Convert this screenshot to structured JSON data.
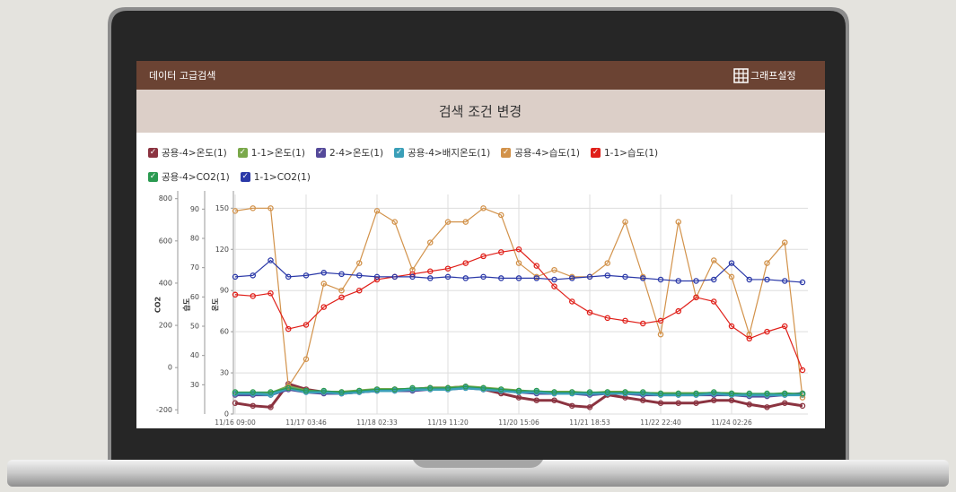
{
  "header": {
    "title": "데이터 고급검색",
    "button": "그래프설정"
  },
  "panel": {
    "title": "검색 조건 변경"
  },
  "chart_data": {
    "type": "line",
    "categories": [
      "11/16 09:00",
      null,
      null,
      null,
      "11/17 03:46",
      null,
      null,
      null,
      "11/18 02:33",
      null,
      null,
      null,
      "11/19 11:20",
      null,
      null,
      null,
      "11/20 15:06",
      null,
      null,
      null,
      "11/21 18:53",
      null,
      null,
      null,
      "11/22 22:40",
      null,
      null,
      null,
      "11/24 02:26",
      null,
      null,
      null,
      null
    ],
    "ylabel": "온도",
    "ylim": [
      0,
      160
    ],
    "yticks": [
      0,
      30,
      60,
      90,
      120,
      150
    ],
    "y2label": "습도",
    "y2lim": [
      20,
      95
    ],
    "y2ticks": [
      30,
      40,
      50,
      60,
      70,
      80,
      90
    ],
    "y3label": "CO2",
    "y3lim": [
      -220,
      820
    ],
    "y3ticks": [
      -200,
      0,
      200,
      400,
      600,
      800
    ],
    "grid": true,
    "series": [
      {
        "name": "공용-4>온도(1)",
        "color": "#8b3340",
        "values": [
          8,
          6,
          5,
          22,
          18,
          16,
          15,
          16,
          17,
          18,
          18,
          19,
          19,
          20,
          18,
          15,
          12,
          10,
          10,
          6,
          5,
          14,
          12,
          10,
          8,
          8,
          8,
          10,
          10,
          7,
          5,
          8,
          6
        ]
      },
      {
        "name": "1-1>온도(1)",
        "color": "#7aa84a",
        "values": [
          15,
          15,
          15,
          20,
          17,
          16,
          16,
          17,
          18,
          18,
          18,
          19,
          19,
          20,
          19,
          18,
          17,
          16,
          16,
          16,
          15,
          16,
          16,
          15,
          15,
          15,
          15,
          15,
          15,
          14,
          14,
          15,
          14
        ]
      },
      {
        "name": "2-4>온도(1)",
        "color": "#554a9a",
        "values": [
          14,
          14,
          14,
          18,
          16,
          15,
          15,
          16,
          17,
          17,
          17,
          18,
          18,
          19,
          18,
          17,
          16,
          15,
          15,
          15,
          14,
          15,
          15,
          14,
          14,
          14,
          14,
          14,
          14,
          13,
          13,
          14,
          15
        ]
      },
      {
        "name": "공용-4>배지온도(1)",
        "color": "#3a9fb8",
        "values": [
          15,
          15,
          14,
          19,
          16,
          16,
          15,
          16,
          17,
          17,
          18,
          18,
          18,
          19,
          18,
          17,
          16,
          16,
          15,
          15,
          15,
          15,
          15,
          15,
          14,
          14,
          14,
          15,
          14,
          14,
          14,
          14,
          14
        ]
      },
      {
        "name": "공용-4>습도(1)",
        "color": "#d2924a",
        "values": [
          148,
          150,
          150,
          20,
          40,
          95,
          90,
          110,
          148,
          140,
          105,
          125,
          140,
          140,
          150,
          145,
          110,
          100,
          105,
          100,
          100,
          110,
          140,
          100,
          58,
          140,
          85,
          112,
          100,
          58,
          110,
          125,
          12
        ]
      },
      {
        "name": "1-1>습도(1)",
        "color": "#e0201a",
        "values": [
          87,
          86,
          88,
          62,
          65,
          78,
          85,
          90,
          98,
          100,
          102,
          104,
          106,
          110,
          115,
          118,
          120,
          108,
          93,
          82,
          74,
          70,
          68,
          66,
          68,
          75,
          85,
          82,
          64,
          55,
          60,
          64,
          32
        ]
      },
      {
        "name": "공용-4>CO2(1)",
        "color": "#2a9a50",
        "values": [
          16,
          16,
          16,
          19,
          17,
          17,
          16,
          17,
          18,
          18,
          19,
          19,
          19,
          20,
          19,
          18,
          17,
          17,
          16,
          16,
          16,
          16,
          16,
          16,
          15,
          15,
          15,
          16,
          15,
          15,
          15,
          15,
          15
        ]
      },
      {
        "name": "1-1>CO2(1)",
        "color": "#2a38a8",
        "values": [
          100,
          101,
          112,
          100,
          101,
          103,
          102,
          101,
          100,
          100,
          100,
          99,
          100,
          99,
          100,
          99,
          99,
          99,
          98,
          99,
          100,
          101,
          100,
          99,
          98,
          97,
          97,
          98,
          110,
          98,
          98,
          97,
          96
        ]
      }
    ]
  }
}
